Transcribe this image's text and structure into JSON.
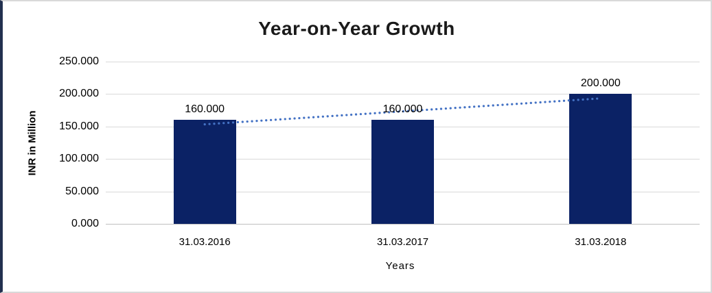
{
  "chart_data": {
    "type": "bar",
    "title": "Year-on-Year Growth",
    "categories": [
      "31.03.2016",
      "31.03.2017",
      "31.03.2018"
    ],
    "values": [
      160,
      160,
      200
    ],
    "value_labels": [
      "160.000",
      "160.000",
      "200.000"
    ],
    "xlabel": "Years",
    "ylabel": "INR in Million",
    "ylim": [
      0,
      250
    ],
    "ytick_step": 50,
    "ytick_labels": [
      "0.000",
      "50.000",
      "100.000",
      "150.000",
      "200.000",
      "250.000"
    ],
    "grid": true,
    "legend": "none",
    "bar_color": "#0b2265",
    "trendline": {
      "type": "linear",
      "style": "dotted",
      "color": "#4472c4"
    },
    "gridline_color": "#d9d9d9",
    "baseline_color": "#bfbfbf",
    "frame_accent_color": "#22304f"
  }
}
